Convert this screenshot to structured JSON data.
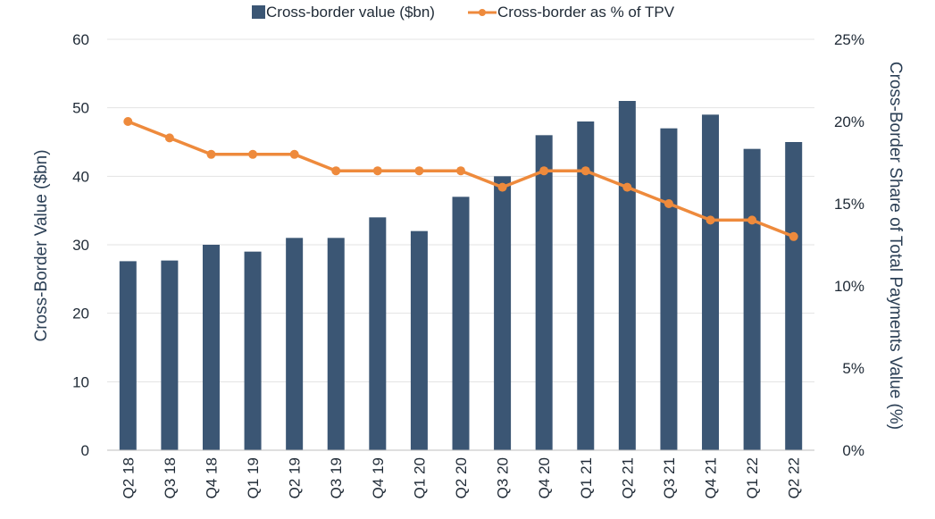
{
  "chart_data": {
    "type": "bar",
    "title": "",
    "categories": [
      "Q2 18",
      "Q3 18",
      "Q4 18",
      "Q1 19",
      "Q2 19",
      "Q3 19",
      "Q4 19",
      "Q1 20",
      "Q2 20",
      "Q3 20",
      "Q4 20",
      "Q1 21",
      "Q2 21",
      "Q3 21",
      "Q4 21",
      "Q1 22",
      "Q2 22"
    ],
    "series": [
      {
        "name": "Cross-border value ($bn)",
        "type": "bar",
        "axis": "left",
        "color": "#3b5674",
        "values": [
          27.6,
          27.7,
          30,
          29,
          31,
          31,
          34,
          32,
          37,
          40,
          46,
          48,
          51,
          47,
          49,
          44,
          45
        ]
      },
      {
        "name": "Cross-border as % of TPV",
        "type": "line",
        "axis": "right",
        "color": "#ee8a3c",
        "values": [
          20,
          19,
          18,
          18,
          18,
          17,
          17,
          17,
          17,
          16,
          17,
          17,
          16,
          15,
          14,
          14,
          13
        ]
      }
    ],
    "ylabel": "Cross-Border Value ($bn)",
    "y2label": "Cross-Border Share of Total Payments Value (%)",
    "ylim": [
      0,
      60
    ],
    "y2lim": [
      0,
      25
    ],
    "yticks": [
      "0",
      "10",
      "20",
      "30",
      "40",
      "50",
      "60"
    ],
    "y2ticks": [
      "0%",
      "5%",
      "10%",
      "15%",
      "20%",
      "25%"
    ],
    "grid": true,
    "legend": "top-center"
  }
}
